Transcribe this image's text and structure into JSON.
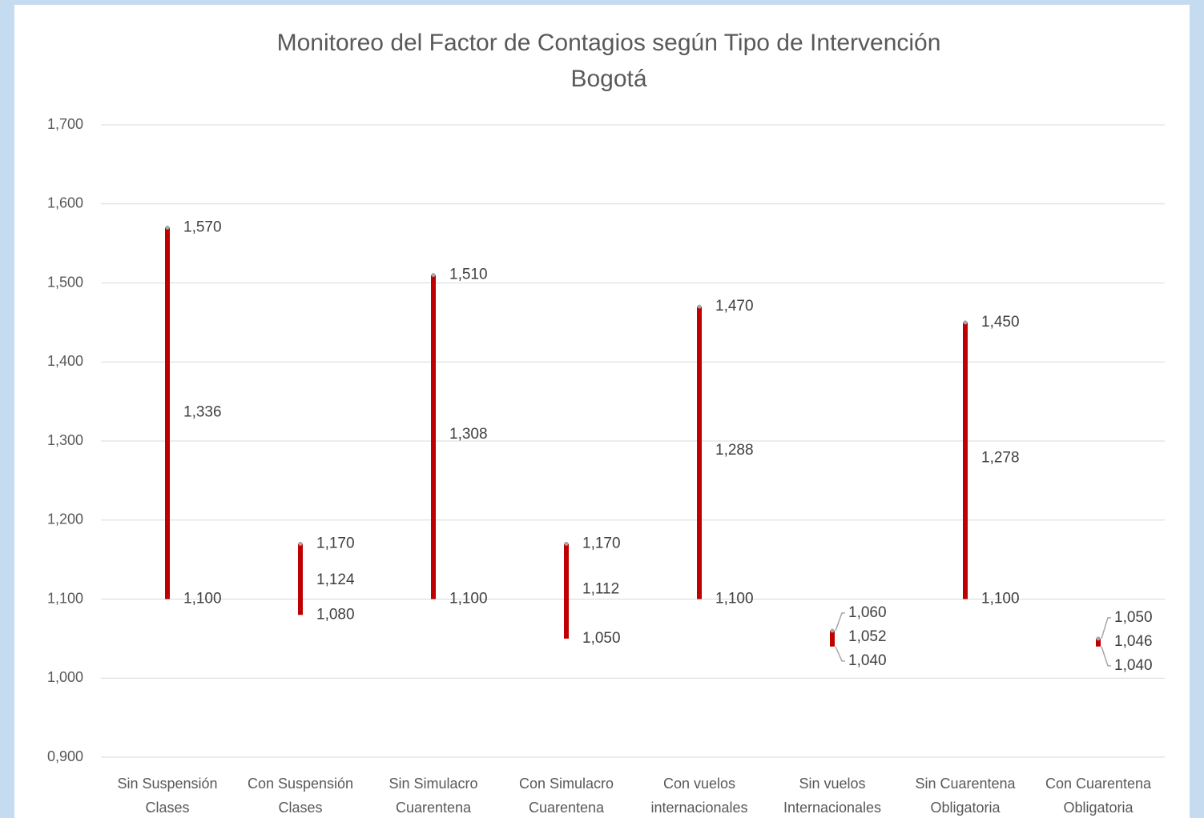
{
  "chart_data": {
    "type": "range",
    "title": "Monitoreo del Factor de Contagios según Tipo de Intervención",
    "subtitle": "Bogotá",
    "categories": [
      [
        "Sin Suspensión",
        "Clases"
      ],
      [
        "Con Suspensión",
        "Clases"
      ],
      [
        "Sin Simulacro",
        "Cuarentena"
      ],
      [
        "Con Simulacro",
        "Cuarentena"
      ],
      [
        "Con vuelos",
        "internacionales"
      ],
      [
        "Sin vuelos",
        "Internacionales"
      ],
      [
        "Sin Cuarentena",
        "Obligatoria"
      ],
      [
        "Con Cuarentena",
        "Obligatoria"
      ]
    ],
    "series": [
      {
        "values": [
          1.57,
          1.17,
          1.51,
          1.17,
          1.47,
          1.06,
          1.45,
          1.05
        ],
        "value_labels": [
          "1,570",
          "1,170",
          "1,510",
          "1,170",
          "1,470",
          "1,060",
          "1,450",
          "1,050"
        ]
      },
      {
        "values": [
          1.336,
          1.124,
          1.308,
          1.112,
          1.288,
          1.052,
          1.278,
          1.046
        ],
        "value_labels": [
          "1,336",
          "1,124",
          "1,308",
          "1,112",
          "1,288",
          "1,052",
          "1,278",
          "1,046"
        ]
      },
      {
        "values": [
          1.1,
          1.08,
          1.1,
          1.05,
          1.1,
          1.04,
          1.1,
          1.04
        ],
        "value_labels": [
          "1,100",
          "1,080",
          "1,100",
          "1,050",
          "1,100",
          "1,040",
          "1,100",
          "1,040"
        ]
      }
    ],
    "color": "#c00000",
    "ylim": [
      0.9,
      1.7
    ],
    "yticks": [
      {
        "value": 0.9,
        "label": "0,900"
      },
      {
        "value": 1.0,
        "label": "1,000"
      },
      {
        "value": 1.1,
        "label": "1,100"
      },
      {
        "value": 1.2,
        "label": "1,200"
      },
      {
        "value": 1.3,
        "label": "1,300"
      },
      {
        "value": 1.4,
        "label": "1,400"
      },
      {
        "value": 1.5,
        "label": "1,500"
      },
      {
        "value": 1.6,
        "label": "1,600"
      },
      {
        "value": 1.7,
        "label": "1,700"
      }
    ],
    "grid": true
  }
}
